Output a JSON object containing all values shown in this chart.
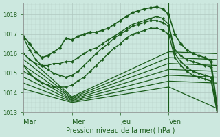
{
  "xlabel": "Pression niveau de la mer( hPa )",
  "background_color": "#cce8df",
  "grid_color": "#b0c8c0",
  "line_color": "#1a5c1a",
  "ylim": [
    1013.0,
    1018.6
  ],
  "xlim": [
    0,
    96
  ],
  "xtick_positions": [
    0,
    24,
    48,
    72
  ],
  "xtick_labels": [
    "Mar",
    "Mer",
    "Jeu",
    "Ven"
  ],
  "ytick_positions": [
    1013,
    1014,
    1015,
    1016,
    1017,
    1018
  ],
  "ytick_labels": [
    "1013",
    "1014",
    "1015",
    "1016",
    "1017",
    "1018"
  ],
  "vline_x": 72,
  "series": [
    {
      "x": [
        0,
        3,
        6,
        9,
        12,
        15,
        18,
        21,
        24,
        27,
        30,
        33,
        36,
        39,
        42,
        45,
        48,
        51,
        54,
        57,
        60,
        63,
        66,
        69,
        72,
        75,
        78,
        81,
        84,
        87,
        90,
        93,
        96
      ],
      "y": [
        1016.9,
        1016.5,
        1016.1,
        1015.8,
        1015.9,
        1016.1,
        1016.3,
        1016.8,
        1016.7,
        1016.9,
        1017.0,
        1017.1,
        1017.1,
        1017.2,
        1017.3,
        1017.5,
        1017.7,
        1017.9,
        1018.1,
        1018.2,
        1018.3,
        1018.35,
        1018.4,
        1018.3,
        1018.0,
        1017.0,
        1016.5,
        1016.2,
        1016.0,
        1015.9,
        1015.8,
        1015.6,
        1013.3
      ],
      "marker": "D",
      "markersize": 2.5,
      "linewidth": 1.2
    },
    {
      "x": [
        0,
        3,
        6,
        9,
        12,
        15,
        18,
        21,
        24,
        27,
        30,
        33,
        36,
        39,
        42,
        45,
        48,
        51,
        54,
        57,
        60,
        63,
        66,
        69,
        72,
        75,
        78,
        81,
        84,
        87,
        90,
        93,
        96
      ],
      "y": [
        1016.0,
        1015.7,
        1015.5,
        1015.4,
        1015.4,
        1015.5,
        1015.5,
        1015.6,
        1015.6,
        1015.8,
        1016.0,
        1016.2,
        1016.3,
        1016.5,
        1016.7,
        1016.9,
        1017.1,
        1017.3,
        1017.5,
        1017.6,
        1017.7,
        1017.8,
        1017.9,
        1017.8,
        1017.5,
        1016.2,
        1015.9,
        1015.7,
        1015.6,
        1015.5,
        1015.4,
        1015.3,
        1013.2
      ],
      "marker": "D",
      "markersize": 2,
      "linewidth": 1.0
    },
    {
      "x": [
        0,
        3,
        6,
        9,
        12,
        15,
        18,
        21,
        24,
        27,
        30,
        33,
        36,
        39,
        42,
        45,
        48,
        51,
        54,
        57,
        60,
        63,
        66,
        69,
        72,
        75,
        78,
        81,
        84,
        87,
        90,
        93,
        96
      ],
      "y": [
        1016.8,
        1016.2,
        1015.7,
        1015.4,
        1015.2,
        1015.0,
        1014.9,
        1014.8,
        1014.9,
        1015.1,
        1015.4,
        1015.7,
        1016.0,
        1016.3,
        1016.5,
        1016.8,
        1017.0,
        1017.2,
        1017.4,
        1017.5,
        1017.6,
        1017.7,
        1017.7,
        1017.6,
        1017.4,
        1016.0,
        1015.6,
        1015.3,
        1015.1,
        1015.0,
        1014.9,
        1014.8,
        1013.1
      ],
      "marker": "D",
      "markersize": 2,
      "linewidth": 1.0
    },
    {
      "x": [
        0,
        3,
        6,
        9,
        12,
        15,
        18,
        21,
        24,
        27,
        30,
        33,
        36,
        39,
        42,
        45,
        48,
        51,
        54,
        57,
        60,
        63,
        66,
        69,
        72,
        75,
        78,
        81,
        84,
        87,
        90,
        93,
        96
      ],
      "y": [
        1015.4,
        1015.0,
        1014.7,
        1014.5,
        1014.4,
        1014.3,
        1014.3,
        1014.3,
        1014.4,
        1014.6,
        1014.8,
        1015.1,
        1015.4,
        1015.7,
        1016.0,
        1016.3,
        1016.5,
        1016.8,
        1017.0,
        1017.1,
        1017.2,
        1017.3,
        1017.3,
        1017.2,
        1017.0,
        1015.8,
        1015.4,
        1015.1,
        1014.9,
        1014.8,
        1014.7,
        1014.6,
        1013.0
      ],
      "marker": "D",
      "markersize": 2,
      "linewidth": 1.0
    },
    {
      "x": [
        0,
        24,
        72,
        96
      ],
      "y": [
        1016.0,
        1013.8,
        1016.1,
        1016.0
      ],
      "marker": null,
      "markersize": 0,
      "linewidth": 0.9
    },
    {
      "x": [
        0,
        24,
        72,
        96
      ],
      "y": [
        1015.7,
        1013.75,
        1015.8,
        1015.7
      ],
      "marker": null,
      "markersize": 0,
      "linewidth": 0.9
    },
    {
      "x": [
        0,
        24,
        72,
        96
      ],
      "y": [
        1015.4,
        1013.7,
        1015.5,
        1015.4
      ],
      "marker": null,
      "markersize": 0,
      "linewidth": 0.9
    },
    {
      "x": [
        0,
        24,
        72,
        96
      ],
      "y": [
        1015.1,
        1013.65,
        1015.2,
        1015.1
      ],
      "marker": null,
      "markersize": 0,
      "linewidth": 0.9
    },
    {
      "x": [
        0,
        24,
        72,
        96
      ],
      "y": [
        1014.8,
        1013.6,
        1014.9,
        1014.8
      ],
      "marker": null,
      "markersize": 0,
      "linewidth": 0.9
    },
    {
      "x": [
        0,
        24,
        72,
        96
      ],
      "y": [
        1014.5,
        1013.55,
        1014.6,
        1014.5
      ],
      "marker": null,
      "markersize": 0,
      "linewidth": 0.9
    },
    {
      "x": [
        0,
        24,
        72,
        96
      ],
      "y": [
        1014.2,
        1013.5,
        1014.3,
        1013.2
      ],
      "marker": null,
      "markersize": 0,
      "linewidth": 0.9
    }
  ]
}
